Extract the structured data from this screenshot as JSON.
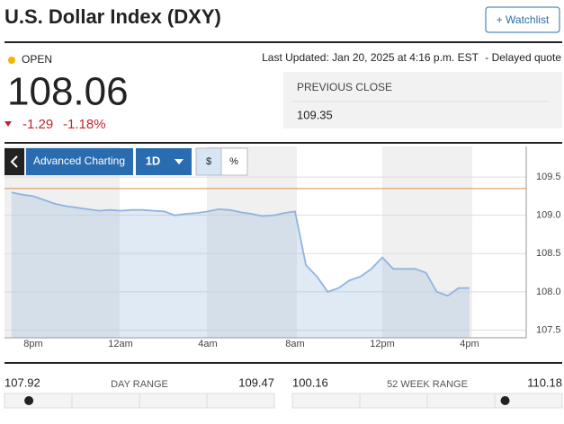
{
  "header": {
    "title": "U.S. Dollar Index (DXY)",
    "watchlist": "+ Watchlist"
  },
  "quote": {
    "status": "OPEN",
    "last_updated": "Last Updated: Jan 20, 2025 at 4:16 p.m. EST",
    "delayed": "-  Delayed quote",
    "price": "108.06",
    "change": "-1.29",
    "change_pct": "-1.18%",
    "previous_close_label": "PREVIOUS CLOSE",
    "previous_close": 109.35
  },
  "controls": {
    "advanced": "Advanced Charting",
    "period": "1D",
    "dollar": "$",
    "percent": "%"
  },
  "chart_data": {
    "type": "line",
    "color": "#8fb4e0",
    "categories": [
      null,
      null,
      "8pm",
      null,
      null,
      null,
      null,
      null,
      null,
      null,
      "12am",
      null,
      null,
      null,
      null,
      null,
      null,
      null,
      "4am",
      null,
      null,
      null,
      null,
      null,
      null,
      null,
      "8am",
      null,
      null,
      null,
      null,
      null,
      null,
      null,
      "12pm",
      null,
      null,
      null,
      null,
      null,
      null,
      null,
      "4pm"
    ],
    "values": [
      109.3,
      109.27,
      109.25,
      109.2,
      109.15,
      109.12,
      109.1,
      109.08,
      109.06,
      109.07,
      109.06,
      109.07,
      109.07,
      109.06,
      109.05,
      109.0,
      109.02,
      109.03,
      109.05,
      109.08,
      109.07,
      109.04,
      109.02,
      108.99,
      109.0,
      109.03,
      109.05,
      108.35,
      108.2,
      108.0,
      108.05,
      108.15,
      108.2,
      108.3,
      108.45,
      108.3,
      108.3,
      108.3,
      108.25,
      108.0,
      107.95,
      108.05,
      108.05
    ],
    "ylim": [
      107.4,
      109.9
    ],
    "yticks": [
      107.5,
      {
        "value": 108,
        "label": "108.0"
      },
      108.5,
      {
        "value": 109,
        "label": "109.0"
      },
      109.5
    ]
  },
  "ranges": {
    "day_low": "107.92",
    "day_label": "DAY RANGE",
    "day_high": "109.47",
    "week_low": "100.16",
    "week_label": "52 WEEK RANGE",
    "week_high": "110.18"
  }
}
